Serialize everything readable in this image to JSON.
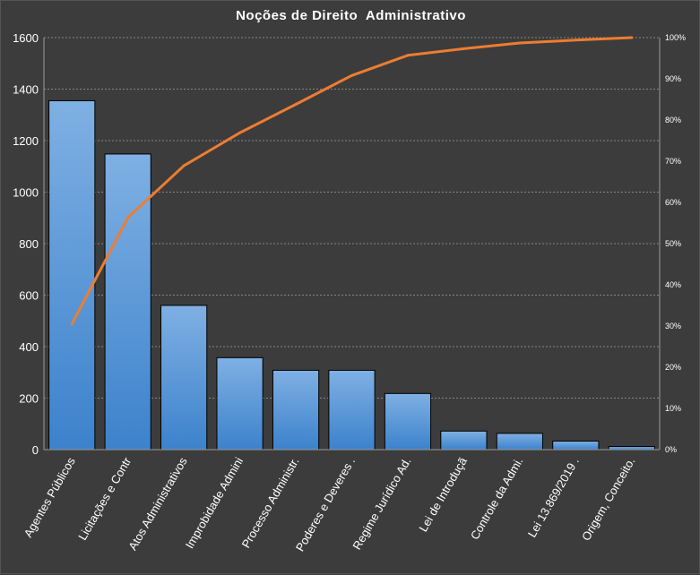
{
  "chart_data": {
    "type": "bar",
    "title": "Noções de Direito  Administrativo",
    "categories": [
      "Agentes Públicos",
      "Licitações e Contr",
      "Atos Administrativos",
      "Improbidade Admini",
      "Processo Administr.",
      "Poderes e Deveres .",
      "Regime Jurídico Ad.",
      "Lei de Introduçã",
      "Controle da Admi.",
      "Lei 13.869/2019 .",
      "Origem, Conceito."
    ],
    "series": [
      {
        "values": [
          1355,
          1148,
          560,
          357,
          308,
          308,
          218,
          72,
          63,
          33,
          12
        ]
      },
      {
        "type": "line",
        "values": [
          30.5,
          56.3,
          68.9,
          76.9,
          83.8,
          90.8,
          95.7,
          97.3,
          98.7,
          99.4,
          100
        ]
      }
    ],
    "ylim": [
      0,
      1600
    ],
    "yticks": [
      "0",
      "200",
      "400",
      "600",
      "800",
      "1000",
      "1200",
      "1400",
      "1600"
    ],
    "y2lim": [
      0,
      100
    ],
    "y2ticks": [
      "0%",
      "10%",
      "20%",
      "30%",
      "40%",
      "50%",
      "60%",
      "70%",
      "80%",
      "90%",
      "100%"
    ],
    "grid": true,
    "colors": {
      "bar": "#4a90d6",
      "bar_light": "#7fb0e3",
      "line": "#ed7d31",
      "grid": "#cfcfcf"
    }
  }
}
